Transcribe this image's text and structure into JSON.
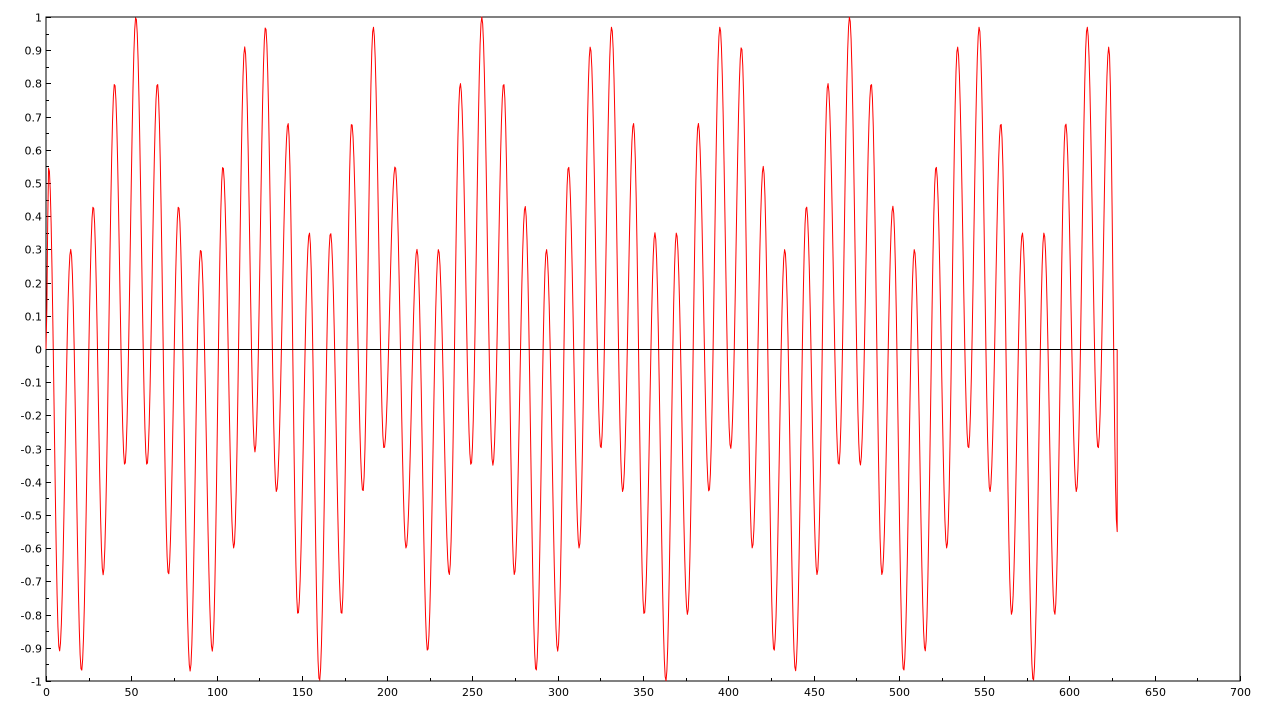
{
  "chart_data": {
    "type": "line",
    "title": "",
    "xlabel": "",
    "ylabel": "",
    "xlim": [
      0,
      700
    ],
    "ylim": [
      -1,
      1
    ],
    "x_ticks": [
      0,
      50,
      100,
      150,
      200,
      250,
      300,
      350,
      400,
      450,
      500,
      550,
      600,
      650,
      700
    ],
    "x_tick_labels": [
      "0",
      "50",
      "100",
      "150",
      "200",
      "250",
      "300",
      "350",
      "400",
      "450",
      "500",
      "550",
      "600",
      "650",
      "700"
    ],
    "y_ticks": [
      -1,
      -0.9,
      -0.8,
      -0.7,
      -0.6,
      -0.5,
      -0.4,
      -0.3,
      -0.2,
      -0.1,
      0,
      0.1,
      0.2,
      0.3,
      0.4,
      0.5,
      0.6,
      0.7,
      0.8,
      0.9,
      1
    ],
    "y_tick_labels": [
      "-1",
      "-0.9",
      "-0.8",
      "-0.7",
      "-0.6",
      "-0.5",
      "-0.4",
      "-0.3",
      "-0.2",
      "-0.1",
      "0",
      "0.1",
      "0.2",
      "0.3",
      "0.4",
      "0.5",
      "0.6",
      "0.7",
      "0.8",
      "0.9",
      "1"
    ],
    "grid": false,
    "colors": {
      "signal": "#ff0000",
      "baseline": "#000000",
      "axes": "#000000",
      "background": "#ffffff"
    },
    "series": [
      {
        "color": "#ff0000",
        "x_range": [
          0,
          628
        ],
        "samples": 1256,
        "value_peaks": [
          {
            "x": 1.6,
            "y": 0.55
          },
          {
            "x": 7.9,
            "y": -0.91
          },
          {
            "x": 14.5,
            "y": 0.3
          },
          {
            "x": 20.8,
            "y": -0.97
          },
          {
            "x": 27.7,
            "y": 0.43
          },
          {
            "x": 33.5,
            "y": -0.68
          },
          {
            "x": 40.2,
            "y": 0.8
          },
          {
            "x": 46.2,
            "y": -0.35
          },
          {
            "x": 52.7,
            "y": 1.0
          },
          {
            "x": 59.2,
            "y": -0.35
          },
          {
            "x": 65.3,
            "y": 0.8
          },
          {
            "x": 71.8,
            "y": -0.68
          },
          {
            "x": 77.7,
            "y": 0.43
          },
          {
            "x": 84.5,
            "y": -0.97
          },
          {
            "x": 90.7,
            "y": 0.3
          },
          {
            "x": 97.5,
            "y": -0.91
          },
          {
            "x": 103.7,
            "y": 0.55
          },
          {
            "x": 110.1,
            "y": -0.6
          },
          {
            "x": 116.5,
            "y": 0.91
          },
          {
            "x": 122.5,
            "y": -0.31
          },
          {
            "x": 128.7,
            "y": 0.97
          },
          {
            "x": 135.1,
            "y": -0.43
          },
          {
            "x": 141.9,
            "y": 0.68
          },
          {
            "x": 147.7,
            "y": -0.8
          },
          {
            "x": 154.4,
            "y": 0.35
          },
          {
            "x": 160.3,
            "y": -1.0
          },
          {
            "x": 166.8,
            "y": 0.35
          },
          {
            "x": 173.3,
            "y": -0.8
          },
          {
            "x": 179.2,
            "y": 0.68
          },
          {
            "x": 185.8,
            "y": -0.43
          },
          {
            "x": 191.9,
            "y": 0.97
          },
          {
            "x": 198.2,
            "y": -0.3
          },
          {
            "x": 204.7,
            "y": 0.55
          },
          {
            "x": 211.1,
            "y": -0.6
          },
          {
            "x": 217.5,
            "y": 0.3
          },
          {
            "x": 223.7,
            "y": -0.91
          },
          {
            "x": 230.1,
            "y": 0.3
          },
          {
            "x": 236.4,
            "y": -0.68
          },
          {
            "x": 242.9,
            "y": 0.8
          },
          {
            "x": 249.2,
            "y": -0.35
          },
          {
            "x": 255.5,
            "y": 1.0
          },
          {
            "x": 262.0,
            "y": -0.35
          },
          {
            "x": 268.3,
            "y": 0.8
          },
          {
            "x": 274.6,
            "y": -0.68
          },
          {
            "x": 280.9,
            "y": 0.43
          },
          {
            "x": 287.3,
            "y": -0.97
          },
          {
            "x": 293.4,
            "y": 0.3
          },
          {
            "x": 300.0,
            "y": -0.91
          },
          {
            "x": 306.3,
            "y": 0.55
          },
          {
            "x": 312.6,
            "y": -0.6
          },
          {
            "x": 319.1,
            "y": 0.91
          },
          {
            "x": 325.3,
            "y": -0.3
          },
          {
            "x": 331.6,
            "y": 0.97
          },
          {
            "x": 338.1,
            "y": -0.43
          },
          {
            "x": 344.4,
            "y": 0.68
          },
          {
            "x": 350.7,
            "y": -0.8
          },
          {
            "x": 357.0,
            "y": 0.35
          },
          {
            "x": 363.4,
            "y": -1.0
          },
          {
            "x": 369.6,
            "y": 0.35
          },
          {
            "x": 376.1,
            "y": -0.8
          },
          {
            "x": 382.4,
            "y": 0.68
          },
          {
            "x": 388.7,
            "y": -0.43
          },
          {
            "x": 395.1,
            "y": 0.97
          },
          {
            "x": 401.4,
            "y": -0.3
          },
          {
            "x": 407.7,
            "y": 0.91
          },
          {
            "x": 414.1,
            "y": -0.6
          },
          {
            "x": 420.5,
            "y": 0.55
          },
          {
            "x": 426.8,
            "y": -0.91
          },
          {
            "x": 433.1,
            "y": 0.3
          },
          {
            "x": 439.4,
            "y": -0.97
          },
          {
            "x": 445.8,
            "y": 0.43
          },
          {
            "x": 452.1,
            "y": -0.68
          },
          {
            "x": 458.4,
            "y": 0.8
          },
          {
            "x": 464.8,
            "y": -0.35
          },
          {
            "x": 471.1,
            "y": 1.0
          },
          {
            "x": 477.4,
            "y": -0.35
          },
          {
            "x": 483.8,
            "y": 0.8
          },
          {
            "x": 490.1,
            "y": -0.68
          },
          {
            "x": 496.5,
            "y": 0.43
          },
          {
            "x": 502.8,
            "y": -0.97
          },
          {
            "x": 509.1,
            "y": 0.3
          },
          {
            "x": 515.4,
            "y": -0.91
          },
          {
            "x": 521.8,
            "y": 0.55
          },
          {
            "x": 528.1,
            "y": -0.6
          },
          {
            "x": 534.4,
            "y": 0.91
          },
          {
            "x": 540.8,
            "y": -0.3
          },
          {
            "x": 547.1,
            "y": 0.97
          },
          {
            "x": 553.4,
            "y": -0.43
          },
          {
            "x": 559.8,
            "y": 0.68
          },
          {
            "x": 566.1,
            "y": -0.8
          },
          {
            "x": 572.4,
            "y": 0.35
          },
          {
            "x": 578.8,
            "y": -1.0
          },
          {
            "x": 585.1,
            "y": 0.35
          },
          {
            "x": 591.4,
            "y": -0.8
          },
          {
            "x": 597.8,
            "y": 0.68
          },
          {
            "x": 604.1,
            "y": -0.43
          },
          {
            "x": 610.4,
            "y": 0.97
          },
          {
            "x": 616.8,
            "y": -0.3
          },
          {
            "x": 623.1,
            "y": 0.91
          },
          {
            "x": 628.0,
            "y": -0.55
          }
        ]
      }
    ],
    "baseline": {
      "y": 0,
      "x_range": [
        0,
        628
      ]
    }
  }
}
